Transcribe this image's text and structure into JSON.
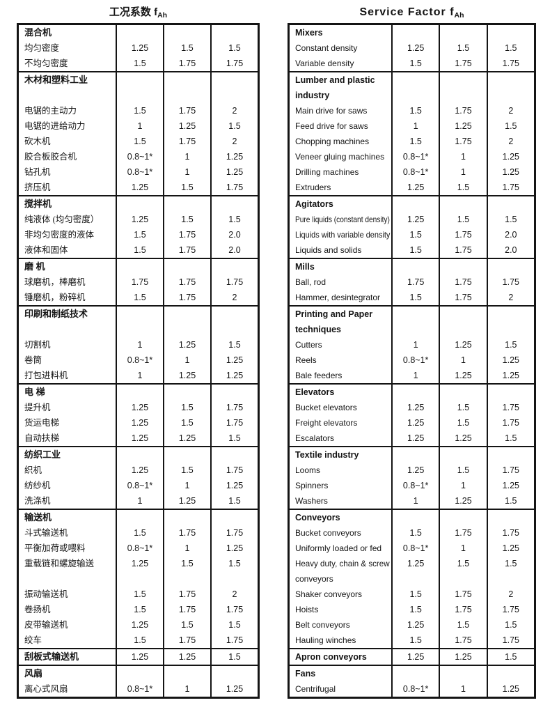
{
  "page": {
    "background_color": "#ffffff",
    "text_color": "#141414"
  },
  "left_table": {
    "title": "工况系数 f",
    "title_sub": "Ah",
    "sections": [
      {
        "rows": [
          {
            "t": "h",
            "label": "混合机"
          },
          {
            "t": "d",
            "label": "均匀密度",
            "v": [
              "1.25",
              "1.5",
              "1.5"
            ]
          },
          {
            "t": "d",
            "label": "不均匀密度",
            "v": [
              "1.5",
              "1.75",
              "1.75"
            ]
          }
        ]
      },
      {
        "rows": [
          {
            "t": "h2",
            "label": "木材和塑料工业",
            "label2": ""
          },
          {
            "t": "d",
            "label": "电锯的主动力",
            "v": [
              "1.5",
              "1.75",
              "2"
            ]
          },
          {
            "t": "d",
            "label": "电锯的进给动力",
            "v": [
              "1",
              "1.25",
              "1.5"
            ]
          },
          {
            "t": "d",
            "label": "砍木机",
            "v": [
              "1.5",
              "1.75",
              "2"
            ]
          },
          {
            "t": "d",
            "label": "胶合板胶合机",
            "v": [
              "0.8~1*",
              "1",
              "1.25"
            ]
          },
          {
            "t": "d",
            "label": "钻孔机",
            "v": [
              "0.8~1*",
              "1",
              "1.25"
            ]
          },
          {
            "t": "d",
            "label": "挤压机",
            "v": [
              "1.25",
              "1.5",
              "1.75"
            ]
          }
        ]
      },
      {
        "rows": [
          {
            "t": "h",
            "label": "搅拌机"
          },
          {
            "t": "d",
            "label": "纯液体 (均匀密度）",
            "v": [
              "1.25",
              "1.5",
              "1.5"
            ]
          },
          {
            "t": "d",
            "label": "非均匀密度的液体",
            "v": [
              "1.5",
              "1.75",
              "2.0"
            ]
          },
          {
            "t": "d",
            "label": "液体和固体",
            "v": [
              "1.5",
              "1.75",
              "2.0"
            ]
          }
        ]
      },
      {
        "rows": [
          {
            "t": "h",
            "label": "磨 机"
          },
          {
            "t": "d",
            "label": "球磨机，棒磨机",
            "v": [
              "1.75",
              "1.75",
              "1.75"
            ]
          },
          {
            "t": "d",
            "label": "锤磨机，粉碎机",
            "v": [
              "1.5",
              "1.75",
              "2"
            ]
          }
        ]
      },
      {
        "rows": [
          {
            "t": "h2",
            "label": "印刷和制纸技术",
            "label2": ""
          },
          {
            "t": "d",
            "label": "切割机",
            "v": [
              "1",
              "1.25",
              "1.5"
            ]
          },
          {
            "t": "d",
            "label": "卷筒",
            "v": [
              "0.8~1*",
              "1",
              "1.25"
            ]
          },
          {
            "t": "d",
            "label": "打包进料机",
            "v": [
              "1",
              "1.25",
              "1.25"
            ]
          }
        ]
      },
      {
        "rows": [
          {
            "t": "h",
            "label": "电 梯"
          },
          {
            "t": "d",
            "label": "提升机",
            "v": [
              "1.25",
              "1.5",
              "1.75"
            ]
          },
          {
            "t": "d",
            "label": "货运电梯",
            "v": [
              "1.25",
              "1.5",
              "1.75"
            ]
          },
          {
            "t": "d",
            "label": "自动扶梯",
            "v": [
              "1.25",
              "1.25",
              "1.5"
            ]
          }
        ]
      },
      {
        "rows": [
          {
            "t": "h",
            "label": "纺织工业"
          },
          {
            "t": "d",
            "label": "织机",
            "v": [
              "1.25",
              "1.5",
              "1.75"
            ]
          },
          {
            "t": "d",
            "label": "纺纱机",
            "v": [
              "0.8~1*",
              "1",
              "1.25"
            ]
          },
          {
            "t": "d",
            "label": "洗涤机",
            "v": [
              "1",
              "1.25",
              "1.5"
            ]
          }
        ]
      },
      {
        "rows": [
          {
            "t": "h",
            "label": "输送机"
          },
          {
            "t": "d",
            "label": "斗式输送机",
            "v": [
              "1.5",
              "1.75",
              "1.75"
            ]
          },
          {
            "t": "d",
            "label": "平衡加荷或喂料",
            "v": [
              "0.8~1*",
              "1",
              "1.25"
            ]
          },
          {
            "t": "d2",
            "label": "重载链和螺旋输送",
            "label2": "",
            "v": [
              "1.25",
              "1.5",
              "1.5"
            ]
          },
          {
            "t": "d",
            "label": "振动输送机",
            "v": [
              "1.5",
              "1.75",
              "2"
            ]
          },
          {
            "t": "d",
            "label": "卷扬机",
            "v": [
              "1.5",
              "1.75",
              "1.75"
            ]
          },
          {
            "t": "d",
            "label": "皮带输送机",
            "v": [
              "1.25",
              "1.5",
              "1.5"
            ]
          },
          {
            "t": "d",
            "label": "绞车",
            "v": [
              "1.5",
              "1.75",
              "1.75"
            ]
          }
        ]
      },
      {
        "rows": [
          {
            "t": "hd",
            "label": "刮板式输送机",
            "v": [
              "1.25",
              "1.25",
              "1.5"
            ]
          }
        ]
      },
      {
        "rows": [
          {
            "t": "h",
            "label": "风扇"
          },
          {
            "t": "d",
            "label": "离心式风扇",
            "v": [
              "0.8~1*",
              "1",
              "1.25"
            ]
          }
        ]
      }
    ]
  },
  "right_table": {
    "title": "Service Factor f",
    "title_sub": "Ah",
    "sections": [
      {
        "rows": [
          {
            "t": "h",
            "label": "Mixers"
          },
          {
            "t": "d",
            "label": "Constant density",
            "v": [
              "1.25",
              "1.5",
              "1.5"
            ]
          },
          {
            "t": "d",
            "label": "Variable density",
            "v": [
              "1.5",
              "1.75",
              "1.75"
            ]
          }
        ]
      },
      {
        "rows": [
          {
            "t": "h2",
            "label": "Lumber and plastic",
            "label2": "industry"
          },
          {
            "t": "d",
            "label": "Main drive for saws",
            "v": [
              "1.5",
              "1.75",
              "2"
            ]
          },
          {
            "t": "d",
            "label": "Feed drive for saws",
            "v": [
              "1",
              "1.25",
              "1.5"
            ]
          },
          {
            "t": "d",
            "label": "Chopping machines",
            "v": [
              "1.5",
              "1.75",
              "2"
            ]
          },
          {
            "t": "d",
            "label": "Veneer gluing machines",
            "v": [
              "0.8~1*",
              "1",
              "1.25"
            ]
          },
          {
            "t": "d",
            "label": "Drilling machines",
            "v": [
              "0.8~1*",
              "1",
              "1.25"
            ]
          },
          {
            "t": "d",
            "label": "Extruders",
            "v": [
              "1.25",
              "1.5",
              "1.75"
            ]
          }
        ]
      },
      {
        "rows": [
          {
            "t": "h",
            "label": "Agitators"
          },
          {
            "t": "d",
            "label": "Pure liquids (constant density)",
            "v": [
              "1.25",
              "1.5",
              "1.5"
            ]
          },
          {
            "t": "d",
            "label": "Liquids with variable density",
            "v": [
              "1.5",
              "1.75",
              "2.0"
            ]
          },
          {
            "t": "d",
            "label": "Liquids and solids",
            "v": [
              "1.5",
              "1.75",
              "2.0"
            ]
          }
        ]
      },
      {
        "rows": [
          {
            "t": "h",
            "label": "Mills"
          },
          {
            "t": "d",
            "label": "Ball, rod",
            "v": [
              "1.75",
              "1.75",
              "1.75"
            ]
          },
          {
            "t": "d",
            "label": "Hammer, desintegrator",
            "v": [
              "1.5",
              "1.75",
              "2"
            ]
          }
        ]
      },
      {
        "rows": [
          {
            "t": "h2",
            "label": "Printing and Paper",
            "label2": "techniques"
          },
          {
            "t": "d",
            "label": "Cutters",
            "v": [
              "1",
              "1.25",
              "1.5"
            ]
          },
          {
            "t": "d",
            "label": "Reels",
            "v": [
              "0.8~1*",
              "1",
              "1.25"
            ]
          },
          {
            "t": "d",
            "label": "Bale feeders",
            "v": [
              "1",
              "1.25",
              "1.25"
            ]
          }
        ]
      },
      {
        "rows": [
          {
            "t": "h",
            "label": "Elevators"
          },
          {
            "t": "d",
            "label": "Bucket elevators",
            "v": [
              "1.25",
              "1.5",
              "1.75"
            ]
          },
          {
            "t": "d",
            "label": "Freight elevators",
            "v": [
              "1.25",
              "1.5",
              "1.75"
            ]
          },
          {
            "t": "d",
            "label": "Escalators",
            "v": [
              "1.25",
              "1.25",
              "1.5"
            ]
          }
        ]
      },
      {
        "rows": [
          {
            "t": "h",
            "label": "Textile industry"
          },
          {
            "t": "d",
            "label": "Looms",
            "v": [
              "1.25",
              "1.5",
              "1.75"
            ]
          },
          {
            "t": "d",
            "label": "Spinners",
            "v": [
              "0.8~1*",
              "1",
              "1.25"
            ]
          },
          {
            "t": "d",
            "label": "Washers",
            "v": [
              "1",
              "1.25",
              "1.5"
            ]
          }
        ]
      },
      {
        "rows": [
          {
            "t": "h",
            "label": "Conveyors"
          },
          {
            "t": "d",
            "label": "Bucket conveyors",
            "v": [
              "1.5",
              "1.75",
              "1.75"
            ]
          },
          {
            "t": "d",
            "label": "Uniformly loaded or fed",
            "v": [
              "0.8~1*",
              "1",
              "1.25"
            ]
          },
          {
            "t": "d2",
            "label": "Heavy duty, chain & screw",
            "label2": "conveyors",
            "v": [
              "1.25",
              "1.5",
              "1.5"
            ]
          },
          {
            "t": "d",
            "label": "Shaker conveyors",
            "v": [
              "1.5",
              "1.75",
              "2"
            ]
          },
          {
            "t": "d",
            "label": "Hoists",
            "v": [
              "1.5",
              "1.75",
              "1.75"
            ]
          },
          {
            "t": "d",
            "label": "Belt conveyors",
            "v": [
              "1.25",
              "1.5",
              "1.5"
            ]
          },
          {
            "t": "d",
            "label": "Hauling winches",
            "v": [
              "1.5",
              "1.75",
              "1.75"
            ]
          }
        ]
      },
      {
        "rows": [
          {
            "t": "hd",
            "label": "Apron conveyors",
            "v": [
              "1.25",
              "1.25",
              "1.5"
            ]
          }
        ]
      },
      {
        "rows": [
          {
            "t": "h",
            "label": "Fans"
          },
          {
            "t": "d",
            "label": "Centrifugal",
            "v": [
              "0.8~1*",
              "1",
              "1.25"
            ]
          }
        ]
      }
    ]
  }
}
